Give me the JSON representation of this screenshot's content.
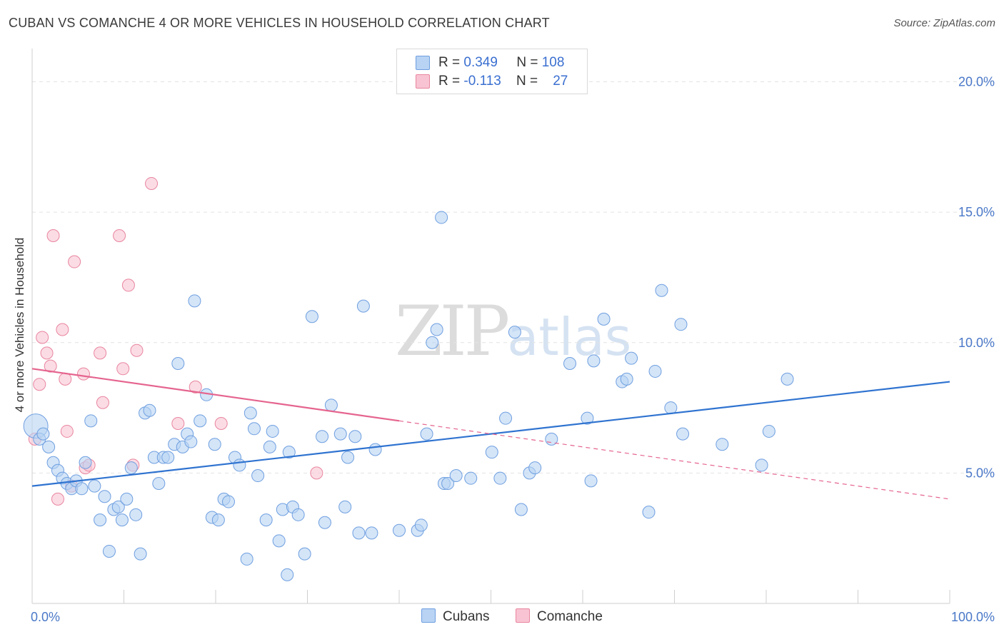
{
  "header": {
    "title": "CUBAN VS COMANCHE 4 OR MORE VEHICLES IN HOUSEHOLD CORRELATION CHART",
    "source": "Source: ZipAtlas.com"
  },
  "watermark": {
    "zip": "ZIP",
    "atlas": "atlas"
  },
  "colors": {
    "blue_fill": "#b8d3f4",
    "blue_stroke": "#6f9fe0",
    "blue_line": "#2f73d0",
    "pink_fill": "#f8c4d3",
    "pink_stroke": "#e9859f",
    "pink_line": "#e5648e",
    "tick_text": "#4a78c8",
    "grid": "#e3e3e3"
  },
  "legend": [
    {
      "series": "Cubans",
      "r_label": "R =",
      "r_value": "0.349",
      "n_label": "N =",
      "n_value": "108"
    },
    {
      "series": "Comanche",
      "r_label": "R =",
      "r_value": "-0.113",
      "n_label": "N =",
      "n_value": "27"
    }
  ],
  "bottom_legend": [
    "Cubans",
    "Comanche"
  ],
  "chart_data": {
    "type": "scatter",
    "title": "CUBAN VS COMANCHE 4 OR MORE VEHICLES IN HOUSEHOLD CORRELATION CHART",
    "xlabel": "",
    "ylabel": "4 or more Vehicles in Household",
    "xlim": [
      0,
      100
    ],
    "ylim": [
      0,
      21
    ],
    "x_tick_labels": [
      "0.0%",
      "100.0%"
    ],
    "y_ticks": [
      5,
      10,
      15,
      20
    ],
    "y_tick_labels": [
      "5.0%",
      "10.0%",
      "15.0%",
      "20.0%"
    ],
    "grid": true,
    "series": [
      {
        "name": "Cubans",
        "points": [
          [
            0.4,
            6.8
          ],
          [
            0.8,
            6.3
          ],
          [
            1.2,
            6.5
          ],
          [
            1.8,
            6.0
          ],
          [
            2.3,
            5.4
          ],
          [
            2.8,
            5.1
          ],
          [
            3.3,
            4.8
          ],
          [
            3.8,
            4.6
          ],
          [
            4.3,
            4.4
          ],
          [
            4.8,
            4.7
          ],
          [
            5.4,
            4.4
          ],
          [
            5.8,
            5.4
          ],
          [
            6.4,
            7.0
          ],
          [
            6.8,
            4.5
          ],
          [
            7.4,
            3.2
          ],
          [
            7.9,
            4.1
          ],
          [
            8.4,
            2.0
          ],
          [
            8.9,
            3.6
          ],
          [
            9.4,
            3.7
          ],
          [
            9.8,
            3.2
          ],
          [
            10.3,
            4.0
          ],
          [
            10.8,
            5.2
          ],
          [
            11.3,
            3.4
          ],
          [
            11.8,
            1.9
          ],
          [
            12.3,
            7.3
          ],
          [
            12.8,
            7.4
          ],
          [
            13.3,
            5.6
          ],
          [
            13.8,
            4.6
          ],
          [
            14.3,
            5.6
          ],
          [
            14.8,
            5.6
          ],
          [
            15.5,
            6.1
          ],
          [
            15.9,
            9.2
          ],
          [
            16.4,
            6.0
          ],
          [
            16.9,
            6.5
          ],
          [
            17.3,
            6.2
          ],
          [
            17.7,
            11.6
          ],
          [
            18.3,
            7.0
          ],
          [
            19.0,
            8.0
          ],
          [
            19.6,
            3.3
          ],
          [
            19.9,
            6.1
          ],
          [
            20.3,
            3.2
          ],
          [
            20.9,
            4.0
          ],
          [
            21.4,
            3.9
          ],
          [
            22.1,
            5.6
          ],
          [
            22.6,
            5.3
          ],
          [
            23.4,
            1.7
          ],
          [
            23.8,
            7.3
          ],
          [
            24.2,
            6.7
          ],
          [
            24.6,
            4.9
          ],
          [
            25.5,
            3.2
          ],
          [
            25.9,
            6.0
          ],
          [
            26.2,
            6.6
          ],
          [
            26.9,
            2.4
          ],
          [
            27.3,
            3.6
          ],
          [
            27.8,
            1.1
          ],
          [
            28.0,
            5.8
          ],
          [
            28.4,
            3.7
          ],
          [
            29.0,
            3.4
          ],
          [
            29.7,
            1.9
          ],
          [
            30.5,
            11.0
          ],
          [
            31.6,
            6.4
          ],
          [
            31.9,
            3.1
          ],
          [
            32.6,
            7.6
          ],
          [
            33.6,
            6.5
          ],
          [
            34.1,
            3.7
          ],
          [
            34.4,
            5.6
          ],
          [
            35.2,
            6.4
          ],
          [
            35.6,
            2.7
          ],
          [
            36.1,
            11.4
          ],
          [
            37.0,
            2.7
          ],
          [
            37.4,
            5.9
          ],
          [
            40.0,
            2.8
          ],
          [
            42.0,
            2.8
          ],
          [
            42.4,
            3.0
          ],
          [
            43.0,
            6.5
          ],
          [
            43.6,
            10.0
          ],
          [
            44.1,
            10.5
          ],
          [
            44.6,
            14.8
          ],
          [
            44.9,
            4.6
          ],
          [
            45.3,
            4.6
          ],
          [
            46.2,
            4.9
          ],
          [
            47.8,
            4.8
          ],
          [
            50.1,
            5.8
          ],
          [
            51.0,
            4.8
          ],
          [
            51.6,
            7.1
          ],
          [
            52.6,
            10.4
          ],
          [
            53.3,
            3.6
          ],
          [
            54.2,
            5.0
          ],
          [
            54.8,
            5.2
          ],
          [
            56.6,
            6.3
          ],
          [
            58.6,
            9.2
          ],
          [
            60.5,
            7.1
          ],
          [
            60.9,
            4.7
          ],
          [
            61.2,
            9.3
          ],
          [
            62.3,
            10.9
          ],
          [
            64.3,
            8.5
          ],
          [
            64.8,
            8.6
          ],
          [
            65.3,
            9.4
          ],
          [
            67.2,
            3.5
          ],
          [
            67.9,
            8.9
          ],
          [
            68.6,
            12.0
          ],
          [
            69.6,
            7.5
          ],
          [
            70.7,
            10.7
          ],
          [
            70.9,
            6.5
          ],
          [
            75.2,
            6.1
          ],
          [
            79.5,
            5.3
          ],
          [
            80.3,
            6.6
          ],
          [
            82.3,
            8.6
          ]
        ],
        "trend": {
          "x": [
            0,
            100
          ],
          "y": [
            4.5,
            8.5
          ]
        }
      },
      {
        "name": "Comanche",
        "points": [
          [
            0.3,
            6.3
          ],
          [
            0.8,
            8.4
          ],
          [
            1.1,
            10.2
          ],
          [
            1.6,
            9.6
          ],
          [
            2.0,
            9.1
          ],
          [
            2.3,
            14.1
          ],
          [
            2.8,
            4.0
          ],
          [
            3.3,
            10.5
          ],
          [
            3.6,
            8.6
          ],
          [
            3.8,
            6.6
          ],
          [
            4.3,
            4.5
          ],
          [
            4.6,
            13.1
          ],
          [
            5.6,
            8.8
          ],
          [
            5.8,
            5.2
          ],
          [
            6.2,
            5.3
          ],
          [
            7.4,
            9.6
          ],
          [
            7.7,
            7.7
          ],
          [
            9.5,
            14.1
          ],
          [
            9.9,
            9.0
          ],
          [
            10.5,
            12.2
          ],
          [
            11.0,
            5.3
          ],
          [
            11.4,
            9.7
          ],
          [
            13.0,
            16.1
          ],
          [
            15.9,
            6.9
          ],
          [
            17.8,
            8.3
          ],
          [
            20.6,
            6.9
          ],
          [
            31.0,
            5.0
          ]
        ],
        "trend": {
          "x": [
            0,
            40,
            100
          ],
          "y": [
            9.0,
            7.0,
            4.0
          ],
          "solid_until_x": 40
        }
      }
    ]
  }
}
